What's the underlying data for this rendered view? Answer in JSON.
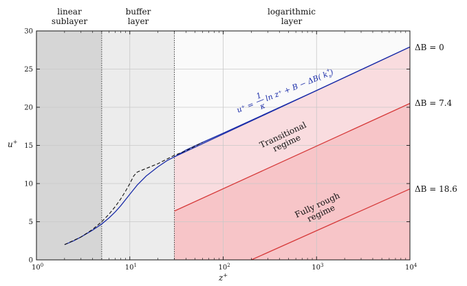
{
  "chart_data": {
    "type": "line",
    "x_scale": "log",
    "xlim": [
      1,
      10000
    ],
    "ylim": [
      0,
      30
    ],
    "x_ticks": [
      {
        "value": 1,
        "label": "10",
        "exp": "0"
      },
      {
        "value": 10,
        "label": "10",
        "exp": "1"
      },
      {
        "value": 100,
        "label": "10",
        "exp": "2"
      },
      {
        "value": 1000,
        "label": "10",
        "exp": "3"
      },
      {
        "value": 10000,
        "label": "10",
        "exp": "4"
      }
    ],
    "y_ticks": [
      0,
      5,
      10,
      15,
      20,
      25,
      30
    ],
    "xlabel": "z",
    "xlabel_sup": "+",
    "ylabel": "u",
    "ylabel_sup": "+",
    "grid": true,
    "regions": [
      {
        "line1": "linear",
        "line2": "sublayer",
        "x_range": [
          1,
          5
        ],
        "color": "#d6d6d6"
      },
      {
        "line1": "buffer",
        "line2": "layer",
        "x_range": [
          5,
          30
        ],
        "color": "#ececec"
      },
      {
        "line1": "logarithmic",
        "line2": "layer",
        "x_range": [
          30,
          10000
        ],
        "color": "#fafafa"
      }
    ],
    "series": [
      {
        "style": "solid",
        "color": "#1a2ca8",
        "points": [
          [
            2,
            2.0
          ],
          [
            2.5,
            2.5
          ],
          [
            3,
            3.0
          ],
          [
            4,
            3.9
          ],
          [
            5,
            4.7
          ],
          [
            6,
            5.5
          ],
          [
            7,
            6.3
          ],
          [
            8,
            7.1
          ],
          [
            10,
            8.6
          ],
          [
            12,
            9.8
          ],
          [
            15,
            11.0
          ],
          [
            20,
            12.2
          ],
          [
            25,
            13.0
          ],
          [
            30,
            13.5
          ],
          [
            40,
            14.4
          ],
          [
            60,
            15.4
          ],
          [
            100,
            16.6
          ],
          [
            1000,
            22.2
          ],
          [
            10000,
            27.9
          ]
        ]
      },
      {
        "style": "dashed",
        "color": "#111111",
        "points": [
          [
            2,
            2.0
          ],
          [
            3,
            3.0
          ],
          [
            4,
            4.0
          ],
          [
            5,
            5.0
          ],
          [
            6,
            6.0
          ],
          [
            7,
            7.0
          ],
          [
            8,
            8.0
          ],
          [
            9,
            9.0
          ],
          [
            10,
            10.0
          ],
          [
            11,
            11.0
          ],
          [
            12,
            11.5
          ],
          [
            20,
            12.6
          ],
          [
            30,
            13.7
          ],
          [
            40,
            14.3
          ],
          [
            60,
            15.4
          ]
        ]
      },
      {
        "name": "ΔB = 0",
        "style": "solid",
        "color": "#1a2ca8",
        "points": [
          [
            30,
            13.5
          ],
          [
            10000,
            27.9
          ]
        ]
      },
      {
        "name": "ΔB = 7.4",
        "style": "solid",
        "color": "#d63a3a",
        "points": [
          [
            30,
            6.4
          ],
          [
            10000,
            20.5
          ]
        ]
      },
      {
        "name": "ΔB = 18.6",
        "style": "solid",
        "color": "#d63a3a",
        "points": [
          [
            200,
            0
          ],
          [
            10000,
            9.3
          ]
        ]
      }
    ],
    "fills": [
      {
        "name": "Transitional regime",
        "color": "#f9dcdf",
        "between": [
          "ΔB = 0",
          "ΔB = 7.4"
        ]
      },
      {
        "name": "Fully rough regime",
        "color": "#f7c5c8",
        "below": "ΔB = 7.4"
      }
    ],
    "annotations": {
      "formula": {
        "lhs": "u⁺ =",
        "frac_num": "1",
        "frac_den": "κ",
        "rhs": "ln z⁺ + B − ΔB( k",
        "rhs_sup": "+",
        "rhs_sub": "s",
        "rhs_end": ")"
      },
      "regime_transitional": {
        "line1": "Transitional",
        "line2": "regime"
      },
      "regime_rough": {
        "line1": "Fully rough",
        "line2": "regime"
      },
      "delta_labels": [
        "ΔB = 0",
        "ΔB = 7.4",
        "ΔB = 18.6"
      ]
    }
  }
}
